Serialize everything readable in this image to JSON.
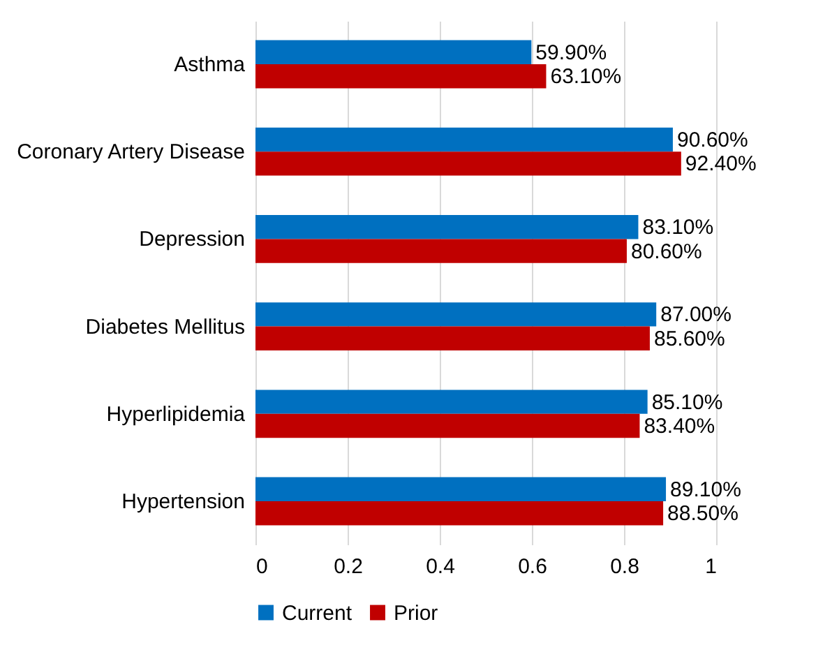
{
  "chart_data": {
    "type": "bar",
    "orientation": "horizontal",
    "categories": [
      "Asthma",
      "Coronary Artery Disease",
      "Depression",
      "Diabetes Mellitus",
      "Hyperlipidemia",
      "Hypertension"
    ],
    "series": [
      {
        "name": "Current",
        "color": "#0070c0",
        "values": [
          0.599,
          0.906,
          0.831,
          0.87,
          0.851,
          0.891
        ],
        "value_labels": [
          "59.90%",
          "90.60%",
          "83.10%",
          "87.00%",
          "85.10%",
          "89.10%"
        ]
      },
      {
        "name": "Prior",
        "color": "#c00000",
        "values": [
          0.631,
          0.924,
          0.806,
          0.856,
          0.834,
          0.885
        ],
        "value_labels": [
          "63.10%",
          "92.40%",
          "80.60%",
          "85.60%",
          "83.40%",
          "88.50%"
        ]
      }
    ],
    "xlim": [
      0,
      1
    ],
    "xticks": [
      0,
      0.2,
      0.4,
      0.6,
      0.8,
      1
    ],
    "grid": "x",
    "legend": "bottom"
  }
}
